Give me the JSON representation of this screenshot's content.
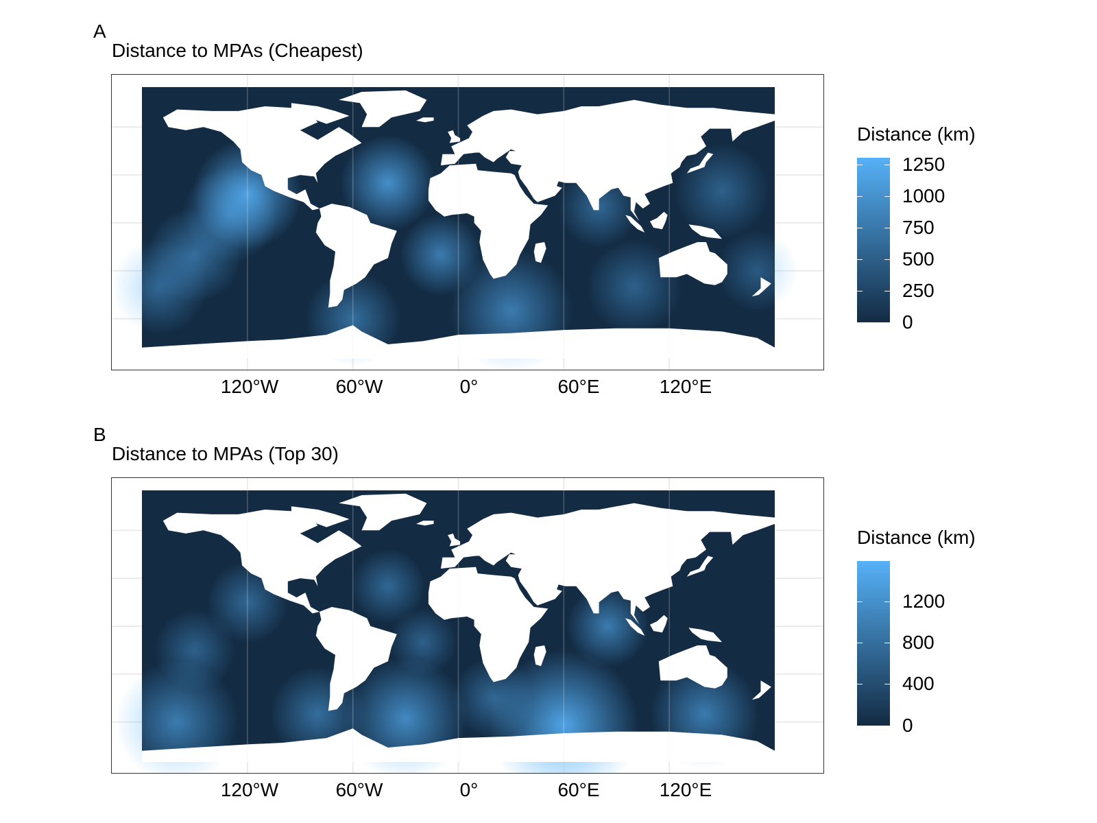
{
  "panels": [
    {
      "letter": "A",
      "title": "Distance to MPAs (Cheapest)",
      "legend": {
        "title": "Distance (km)",
        "ticks": [
          "1250",
          "1000",
          "750",
          "500",
          "250",
          "0"
        ],
        "tick_values": [
          1250,
          1000,
          750,
          500,
          250,
          0
        ],
        "max": 1250
      }
    },
    {
      "letter": "B",
      "title": "Distance to MPAs (Top 30)",
      "legend": {
        "title": "Distance (km)",
        "ticks": [
          "1200",
          "800",
          "400",
          "0"
        ],
        "tick_values": [
          1200,
          800,
          400,
          0
        ],
        "max": 1600
      }
    }
  ],
  "x_axis": {
    "ticks": [
      "120°W",
      "60°W",
      "0°",
      "60°E",
      "120°E"
    ],
    "tick_lons": [
      -120,
      -60,
      0,
      60,
      120
    ]
  },
  "colors": {
    "ocean_low": "#132B43",
    "ocean_high": "#56B1F7",
    "land": "#ffffff",
    "grid": "#ebebeb",
    "frame": "#333333"
  },
  "map": {
    "lon_range": [
      -180,
      180
    ],
    "lat_range": [
      -85,
      85
    ]
  }
}
